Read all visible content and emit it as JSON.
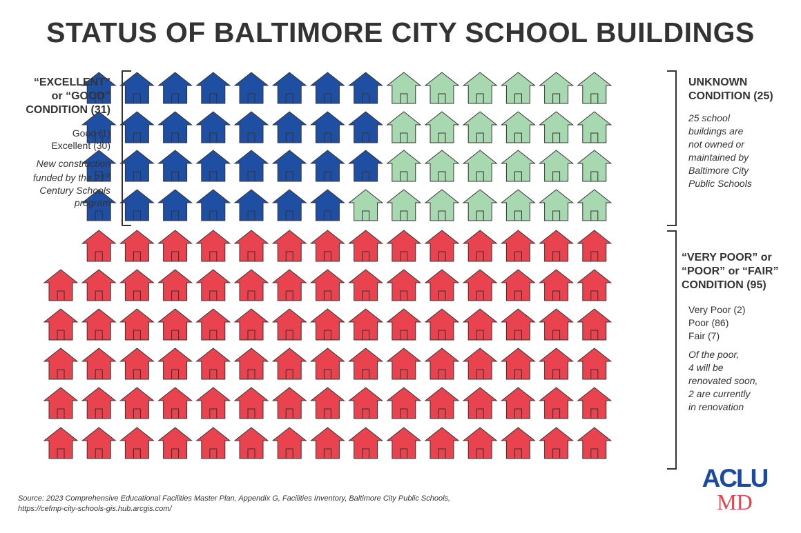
{
  "title": "STATUS OF BALTIMORE CITY SCHOOL BUILDINGS",
  "chart_data": {
    "type": "pictogram",
    "unit": "school building",
    "total": 151,
    "series": [
      {
        "name": "“EXCELLENT” or “GOOD” CONDITION",
        "value": 31,
        "color": "#1f4fa3",
        "breakdown": [
          {
            "label": "Good",
            "value": 1
          },
          {
            "label": "Excellent",
            "value": 30
          }
        ]
      },
      {
        "name": "UNKNOWN CONDITION",
        "value": 25,
        "color": "#a8d8b0"
      },
      {
        "name": "“VERY POOR” or “POOR” or “FAIR” CONDITION",
        "value": 95,
        "color": "#e8434e",
        "breakdown": [
          {
            "label": "Very Poor",
            "value": 2
          },
          {
            "label": "Poor",
            "value": 86
          },
          {
            "label": "Fair",
            "value": 7
          }
        ]
      }
    ]
  },
  "labels": {
    "good": {
      "heading": [
        "“EXCELLENT”",
        "or “GOOD”",
        "CONDITION (31)"
      ],
      "breakdown": [
        "Good (1)",
        "Excellent (30)"
      ],
      "note_line1": "New construction",
      "note_line2_pre": "funded by the 21",
      "note_line2_sup": "st",
      "note_line3": "Century Schools",
      "note_line4": "program"
    },
    "unknown": {
      "heading": [
        "UNKNOWN",
        "CONDITION (25)"
      ],
      "note": [
        "25 school",
        "buildings are",
        "not owned or",
        "maintained by",
        "Baltimore City",
        "Public Schools"
      ]
    },
    "poor": {
      "heading": [
        "“VERY POOR” or",
        "“POOR” or “FAIR”",
        "CONDITION (95)"
      ],
      "breakdown": [
        "Very Poor (2)",
        "Poor (86)",
        "Fair (7)"
      ],
      "note": [
        "Of the poor,",
        "4 will be",
        "renovated soon,",
        "2 are currently",
        "in renovation"
      ]
    }
  },
  "source": {
    "line1": "Source: 2023 Comprehensive Educational Facilities Master Plan, Appendix G, Facilities Inventory, Baltimore City Public Schools,",
    "line2": "https://cefmp-city-schools-gis.hub.arcgis.com/"
  },
  "logo": {
    "top": "ACLU",
    "bottom": "MD"
  },
  "colors": {
    "blue": "#1f4fa3",
    "green": "#a8d8b0",
    "red": "#e8434e",
    "text": "#333333"
  }
}
